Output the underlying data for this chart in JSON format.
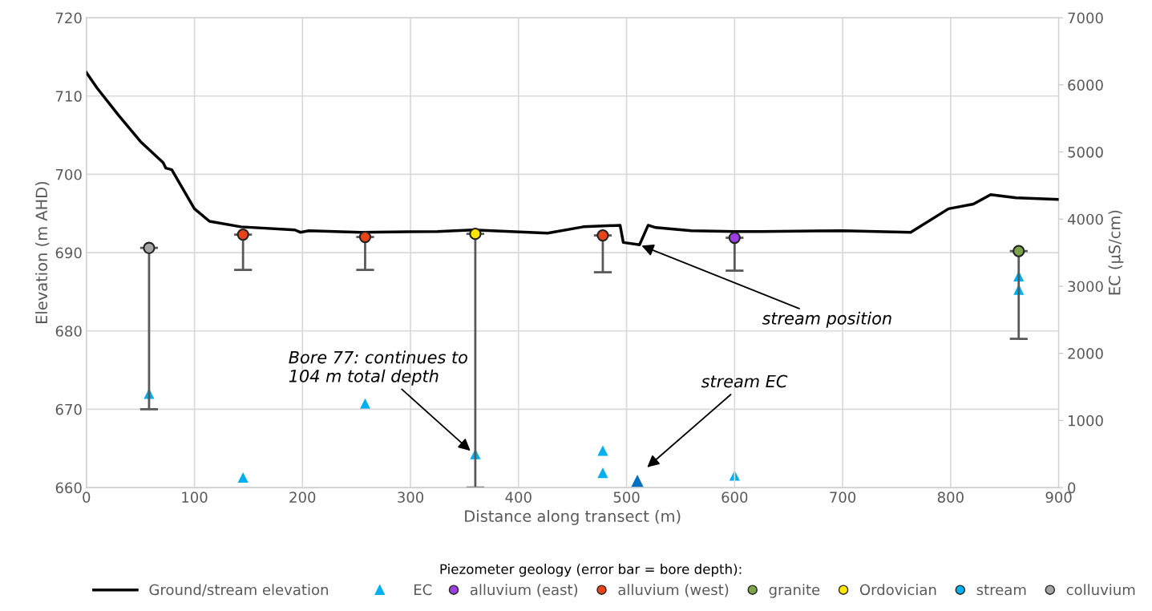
{
  "chart_data": {
    "type": "scatter",
    "xlabel": "Distance along transect (m)",
    "ylabel": "Elevation (m AHD)",
    "y2label": "EC (µS/cm)",
    "legend_title": "Piezometer geology (error bar = bore depth):",
    "xlim": [
      0,
      900
    ],
    "xticks": [
      0,
      100,
      200,
      300,
      400,
      500,
      600,
      700,
      800,
      900
    ],
    "ylim": [
      660,
      720
    ],
    "yticks": [
      660,
      670,
      680,
      690,
      700,
      710,
      720
    ],
    "y2lim": [
      0,
      7000
    ],
    "y2ticks": [
      0,
      1000,
      2000,
      3000,
      4000,
      5000,
      6000,
      7000
    ],
    "grid": true,
    "legend": "bottom",
    "series": [
      {
        "name": "Ground/stream elevation",
        "type": "line",
        "color": "#000000",
        "marker": "none",
        "x": [
          0,
          10,
          30,
          50,
          71,
          73.5,
          79,
          100,
          114,
          143,
          193,
          198,
          206,
          254,
          325,
          358,
          427,
          460,
          494,
          497,
          512,
          520,
          527,
          560,
          600,
          625,
          700,
          763,
          798,
          821,
          837,
          861,
          900
        ],
        "values": [
          713,
          711,
          707.5,
          704.2,
          701.5,
          700.8,
          700.6,
          695.6,
          694,
          693.3,
          692.9,
          692.6,
          692.8,
          692.6,
          692.7,
          692.9,
          692.5,
          693.3,
          693.5,
          691.3,
          691.0,
          693.5,
          693.2,
          692.8,
          692.7,
          692.7,
          692.8,
          692.6,
          695.6,
          696.2,
          697.4,
          697.0,
          696.8
        ]
      },
      {
        "name": "EC",
        "axis": "y2",
        "color": "#00b0f0",
        "marker": "triangle",
        "x": [
          58,
          145,
          258,
          360,
          478,
          478,
          600,
          863,
          863
        ],
        "values": [
          1400,
          150,
          1250,
          500,
          550,
          220,
          180,
          3150,
          2950
        ]
      },
      {
        "name": "alluvium (east)",
        "color": "#9b3fe0",
        "marker": "circle",
        "x": [
          600
        ],
        "values": [
          691.9
        ],
        "errors": [
          [
            687.7,
            691.9
          ]
        ]
      },
      {
        "name": "alluvium (west)",
        "color": "#e8441c",
        "marker": "circle",
        "x": [
          145,
          258,
          478
        ],
        "values": [
          692.3,
          692.0,
          692.2
        ],
        "errors": [
          [
            687.8,
            692.3
          ],
          [
            687.8,
            692.0
          ],
          [
            687.5,
            692.2
          ]
        ]
      },
      {
        "name": "granite",
        "color": "#7da34a",
        "marker": "circle",
        "x": [
          863
        ],
        "values": [
          690.2
        ],
        "errors": [
          [
            679,
            690.2
          ]
        ]
      },
      {
        "name": "Ordovician",
        "color": "#ffe600",
        "marker": "circle",
        "x": [
          360
        ],
        "values": [
          692.4
        ],
        "errors": [
          [
            660,
            692.4
          ]
        ]
      },
      {
        "name": "stream",
        "color": "#00b0f0",
        "marker": "circle"
      },
      {
        "name": "colluvium",
        "color": "#a6a6a6",
        "marker": "circle",
        "x": [
          58
        ],
        "values": [
          690.6
        ],
        "errors": [
          [
            670,
            690.6
          ]
        ]
      },
      {
        "axis": "y2",
        "color": "#0070c0",
        "marker": "triangle",
        "x": [
          510
        ],
        "values": [
          70
        ]
      }
    ],
    "annotations": [
      {
        "text": "Bore 77: continues to\n104 m total depth",
        "x": 357,
        "y": 664.5
      },
      {
        "text": "stream position",
        "x": 512,
        "y": 691.0
      },
      "stream EC"
    ]
  }
}
